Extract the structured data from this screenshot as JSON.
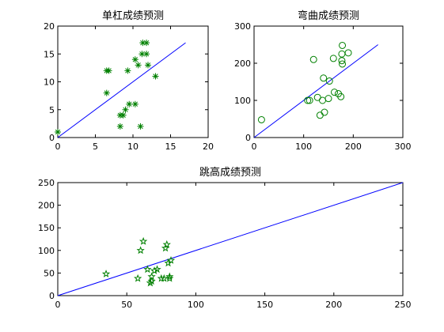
{
  "chart_data": [
    {
      "type": "scatter",
      "title": "单杠成绩预测",
      "xlim": [
        0,
        20
      ],
      "ylim": [
        0,
        20
      ],
      "xticks": [
        0,
        5,
        10,
        15,
        20
      ],
      "yticks": [
        0,
        5,
        10,
        15,
        20
      ],
      "marker": "asterisk",
      "marker_color": "#008000",
      "line_color": "#0000ff",
      "reference_line": {
        "x": [
          0,
          17
        ],
        "y": [
          0,
          17
        ]
      },
      "points": [
        {
          "x": 0,
          "y": 1
        },
        {
          "x": 6.5,
          "y": 8
        },
        {
          "x": 6.5,
          "y": 12
        },
        {
          "x": 6.8,
          "y": 12
        },
        {
          "x": 8.3,
          "y": 2
        },
        {
          "x": 8.3,
          "y": 4
        },
        {
          "x": 8.7,
          "y": 4
        },
        {
          "x": 9.0,
          "y": 5
        },
        {
          "x": 9.3,
          "y": 12
        },
        {
          "x": 9.5,
          "y": 6
        },
        {
          "x": 10.3,
          "y": 6
        },
        {
          "x": 10.3,
          "y": 14
        },
        {
          "x": 10.7,
          "y": 13
        },
        {
          "x": 11.0,
          "y": 2
        },
        {
          "x": 11.2,
          "y": 15
        },
        {
          "x": 11.3,
          "y": 17
        },
        {
          "x": 11.8,
          "y": 17
        },
        {
          "x": 11.8,
          "y": 15
        },
        {
          "x": 12.0,
          "y": 13
        },
        {
          "x": 13.0,
          "y": 11
        }
      ]
    },
    {
      "type": "scatter",
      "title": "弯曲成绩预测",
      "xlim": [
        0,
        300
      ],
      "ylim": [
        0,
        300
      ],
      "xticks": [
        0,
        100,
        200,
        300
      ],
      "yticks": [
        0,
        100,
        200,
        300
      ],
      "marker": "circle",
      "marker_color": "#008000",
      "line_color": "#0000ff",
      "reference_line": {
        "x": [
          0,
          250
        ],
        "y": [
          0,
          250
        ]
      },
      "points": [
        {
          "x": 15,
          "y": 48
        },
        {
          "x": 108,
          "y": 100
        },
        {
          "x": 112,
          "y": 100
        },
        {
          "x": 120,
          "y": 210
        },
        {
          "x": 128,
          "y": 108
        },
        {
          "x": 133,
          "y": 60
        },
        {
          "x": 138,
          "y": 100
        },
        {
          "x": 140,
          "y": 160
        },
        {
          "x": 142,
          "y": 68
        },
        {
          "x": 150,
          "y": 105
        },
        {
          "x": 152,
          "y": 152
        },
        {
          "x": 160,
          "y": 213
        },
        {
          "x": 162,
          "y": 122
        },
        {
          "x": 170,
          "y": 118
        },
        {
          "x": 175,
          "y": 110
        },
        {
          "x": 177,
          "y": 225
        },
        {
          "x": 177,
          "y": 207
        },
        {
          "x": 178,
          "y": 198
        },
        {
          "x": 178,
          "y": 248
        },
        {
          "x": 190,
          "y": 228
        }
      ]
    },
    {
      "type": "scatter",
      "title": "跳高成绩预测",
      "xlim": [
        0,
        250
      ],
      "ylim": [
        0,
        250
      ],
      "xticks": [
        0,
        50,
        100,
        150,
        200,
        250
      ],
      "yticks": [
        0,
        50,
        100,
        150,
        200,
        250
      ],
      "marker": "pentagram",
      "marker_color": "#008000",
      "line_color": "#0000ff",
      "reference_line": {
        "x": [
          0,
          250
        ],
        "y": [
          0,
          250
        ]
      },
      "points": [
        {
          "x": 35,
          "y": 48
        },
        {
          "x": 58,
          "y": 38
        },
        {
          "x": 60,
          "y": 100
        },
        {
          "x": 62,
          "y": 120
        },
        {
          "x": 65,
          "y": 58
        },
        {
          "x": 67,
          "y": 28
        },
        {
          "x": 68,
          "y": 32
        },
        {
          "x": 68,
          "y": 42
        },
        {
          "x": 70,
          "y": 55
        },
        {
          "x": 72,
          "y": 58
        },
        {
          "x": 75,
          "y": 38
        },
        {
          "x": 77,
          "y": 38
        },
        {
          "x": 78,
          "y": 105
        },
        {
          "x": 79,
          "y": 113
        },
        {
          "x": 80,
          "y": 72
        },
        {
          "x": 81,
          "y": 42
        },
        {
          "x": 81,
          "y": 38
        },
        {
          "x": 82,
          "y": 78
        }
      ]
    }
  ]
}
